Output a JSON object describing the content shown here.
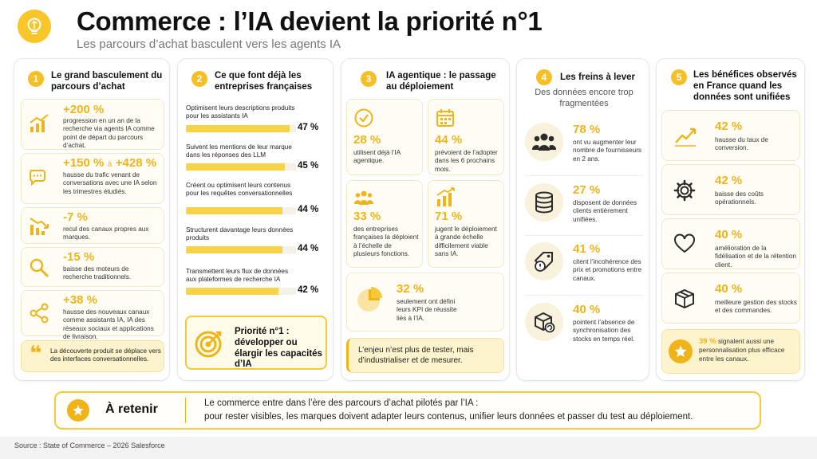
{
  "header": {
    "title": "Commerce : l’IA devient la priorité n°1",
    "subtitle": "Les parcours d’achat basculent vers les agents IA",
    "accent": "#f6bf26"
  },
  "col1": {
    "num": "1",
    "title": "Le grand basculement du parcours d’achat",
    "items": [
      {
        "icon": "growth-chart-icon",
        "pct": "+200 %",
        "desc": "progression en un an de la recherche via agents IA comme point de départ du parcours d’achat."
      },
      {
        "icon": "chat-bubbles-icon",
        "pct": "+150 % à +428 %",
        "pct_a": "+150 %",
        "pct_mid": "à",
        "pct_b": "+428 %",
        "desc": "hausse du trafic venant de conversations avec une IA selon les trimestres étudiés."
      },
      {
        "icon": "decline-chart-icon",
        "pct": "-7 %",
        "desc": "recul des canaux propres aux marques."
      },
      {
        "icon": "magnifier-icon",
        "pct": "-15 %",
        "desc": "baisse des moteurs de recherche traditionnels."
      },
      {
        "icon": "share-network-icon",
        "pct": "+38 %",
        "desc": "hausse des nouveaux canaux comme assistants IA, IA des réseaux sociaux et applications de livraison."
      }
    ],
    "quote": "La découverte produit se déplace vers des interfaces conversationnelles."
  },
  "col2": {
    "num": "2",
    "title": "Ce que font déjà les entreprises françaises",
    "bars": [
      {
        "label": "Optimisent leurs descriptions produits pour les assistants IA",
        "value": 47,
        "display": "47 %"
      },
      {
        "label": "Suivent les mentions de leur marque dans les réponses des LLM",
        "value": 45,
        "display": "45 %"
      },
      {
        "label": "Créent ou optimisent leurs contenus pour les requêtes conversationnelles",
        "value": 44,
        "display": "44 %"
      },
      {
        "label": "Structurent davantage leurs données produits",
        "value": 44,
        "display": "44 %"
      },
      {
        "label": "Transmettent leurs flux de données aux plateformes de recherche IA",
        "value": 42,
        "display": "42 %"
      }
    ],
    "priority": "Priorité n°1 : développer ou élargir les capacités d’IA"
  },
  "col3": {
    "num": "3",
    "title": "IA agentique : le passage au déploiement",
    "cards": [
      {
        "icon": "check-circle-icon",
        "pct": "28 %",
        "desc": "utilisent déjà l’IA agentique."
      },
      {
        "icon": "calendar-icon",
        "pct": "44 %",
        "desc": "prévoient de l’adopter dans les 6 prochains mois."
      },
      {
        "icon": "people-group-icon",
        "pct": "33 %",
        "desc": "des entreprises françaises la déploient à l’échelle de plusieurs fonctions."
      },
      {
        "icon": "bar-growth-icon",
        "pct": "71 %",
        "desc": "jugent le déploiement à grande échelle difficilement viable sans IA."
      },
      {
        "icon": "pie-chart-icon",
        "pct": "32 %",
        "desc": "seulement ont défini leurs KPI de réussite liés à l’IA."
      }
    ],
    "quote": "L’enjeu n’est plus de tester, mais d’industrialiser et de mesurer."
  },
  "col4": {
    "num": "4",
    "title": "Les freins à lever",
    "subtitle": "Des données encore trop fragmentées",
    "items": [
      {
        "icon": "team-icon",
        "pct": "78 %",
        "desc": "ont vu augmenter leur nombre de fournisseurs en 2 ans."
      },
      {
        "icon": "database-icon",
        "pct": "27 %",
        "desc": "disposent de données clients entièrement unifiées."
      },
      {
        "icon": "price-tag-alert-icon",
        "pct": "41 %",
        "desc": "citent l’incohérence des prix et promotions entre canaux."
      },
      {
        "icon": "box-sync-icon",
        "pct": "40 %",
        "desc": "pointent l’absence de synchronisation des stocks en temps réel."
      }
    ]
  },
  "col5": {
    "num": "5",
    "title": "Les bénéfices observés en France quand les données sont unifiées",
    "items": [
      {
        "icon": "trend-up-icon",
        "pct": "42 %",
        "desc": "hausse du taux de conversion."
      },
      {
        "icon": "gear-icon",
        "pct": "42 %",
        "desc": "baisse des coûts opérationnels."
      },
      {
        "icon": "heart-icon",
        "pct": "40 %",
        "desc": "amélioration de la fidélisation et de la rétention client."
      },
      {
        "icon": "package-icon",
        "pct": "40 %",
        "desc": "meilleure gestion des stocks et des commandes."
      }
    ],
    "extra_pct": "39 %",
    "extra_text": "signalent aussi une personnalisation plus efficace entre les canaux."
  },
  "retenir": {
    "label": "À retenir",
    "line1": "Le commerce entre dans l’ère des parcours d’achat pilotés par l’IA :",
    "line2": "pour rester visibles, les marques doivent adapter leurs contenus, unifier leurs données et passer du test au déploiement."
  },
  "footer": {
    "source": "Source : State of Commerce – 2026 Salesforce"
  }
}
